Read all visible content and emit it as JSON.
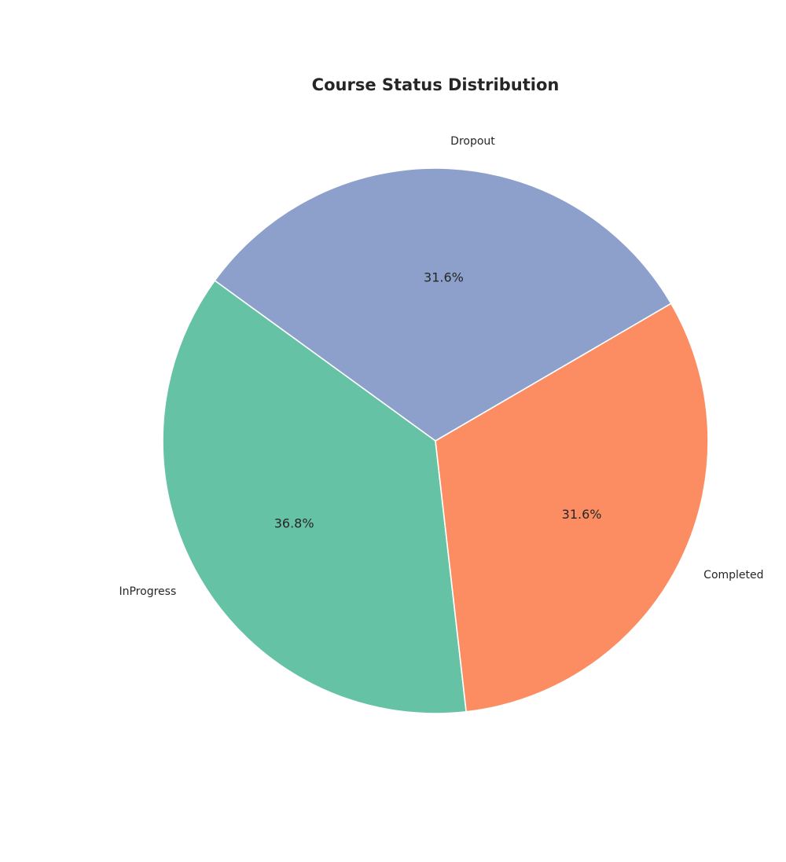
{
  "chart_data": {
    "type": "pie",
    "title": "Course Status Distribution",
    "start_angle_deg": 144,
    "direction": "counterclockwise",
    "legend": "none",
    "slices": [
      {
        "label": "InProgress",
        "value": 36.8,
        "pct_label": "36.8%",
        "color": "#66c2a5"
      },
      {
        "label": "Completed",
        "value": 31.6,
        "pct_label": "31.6%",
        "color": "#fc8d62"
      },
      {
        "label": "Dropout",
        "value": 31.6,
        "pct_label": "31.6%",
        "color": "#8da0cb"
      }
    ]
  }
}
